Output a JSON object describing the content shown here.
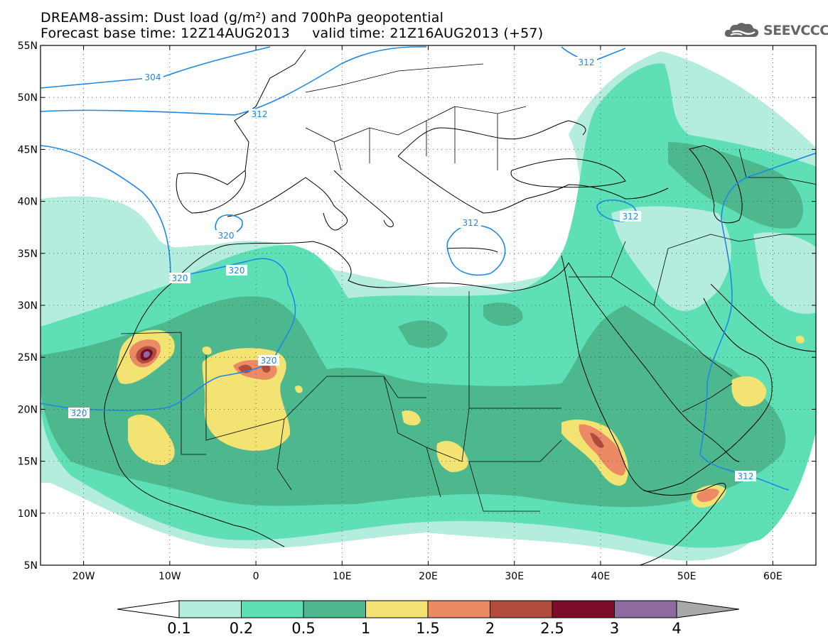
{
  "header": {
    "line1": "DREAM8-assim: Dust load (g/m²) and 700hPa geopotential",
    "line2": "Forecast base time: 12Z14AUG2013     valid time: 21Z16AUG2013 (+57)"
  },
  "logo": {
    "text": "SEEVCCC",
    "icon": "cloud-icon"
  },
  "map": {
    "lon_range": [
      -25,
      65
    ],
    "lat_range": [
      5,
      55
    ],
    "lat_ticks": [
      "5N",
      "10N",
      "15N",
      "20N",
      "25N",
      "30N",
      "35N",
      "40N",
      "45N",
      "50N",
      "55N"
    ],
    "lon_ticks": [
      "20W",
      "10W",
      "0",
      "10E",
      "20E",
      "30E",
      "40E",
      "50E",
      "60E"
    ],
    "grid": "dotted",
    "contour_labels": [
      "304",
      "312",
      "312",
      "320",
      "320",
      "320",
      "320",
      "320",
      "312",
      "312",
      "312"
    ]
  },
  "legend": {
    "levels": [
      "0.1",
      "0.2",
      "0.5",
      "1",
      "1.5",
      "2",
      "2.5",
      "3",
      "4"
    ],
    "colors": [
      "#ffffff",
      "#b4ecdd",
      "#5fdfb5",
      "#4db88e",
      "#f3e373",
      "#eb8a64",
      "#b04c3c",
      "#7b0c2a",
      "#8d6ba0",
      "#a9a9a9"
    ]
  },
  "colors": {
    "contour": "#1e88e5",
    "dust_0_1": "#b4ecdd",
    "dust_0_2": "#5fdfb5",
    "dust_0_5": "#4db88e",
    "dust_1": "#f3e373",
    "dust_1_5": "#eb8a64",
    "dust_2": "#b04c3c",
    "dust_2_5": "#7b0c2a",
    "dust_3": "#8d6ba0"
  }
}
